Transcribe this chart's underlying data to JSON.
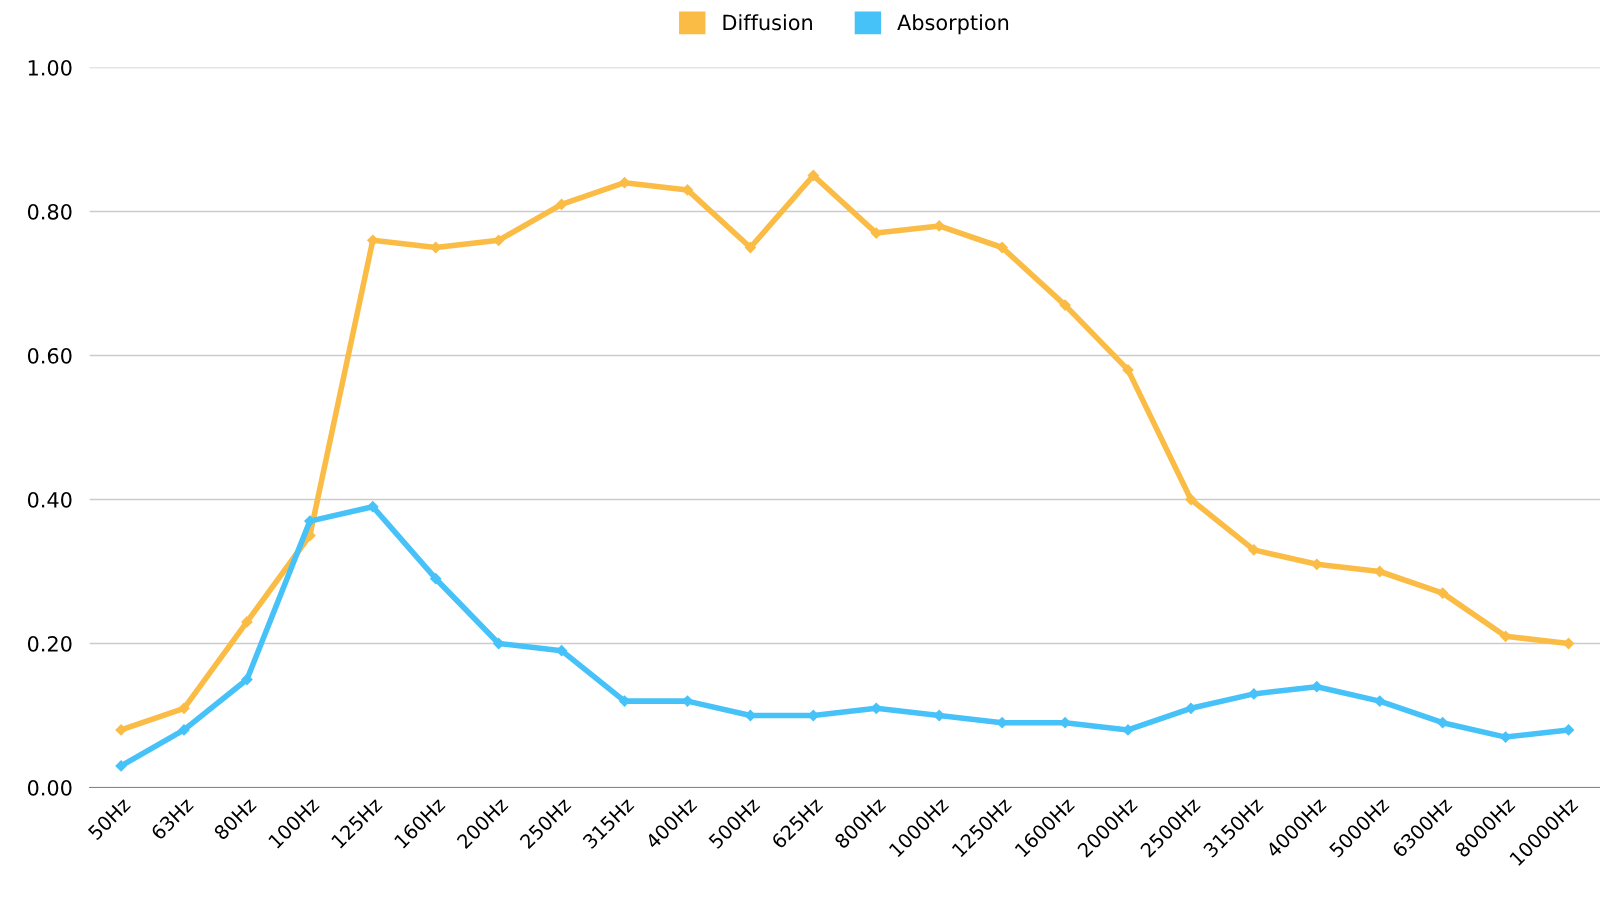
{
  "chart_data": {
    "type": "line",
    "categories": [
      "50Hz",
      "63Hz",
      "80Hz",
      "100Hz",
      "125Hz",
      "160Hz",
      "200Hz",
      "250Hz",
      "315Hz",
      "400Hz",
      "500Hz",
      "625Hz",
      "800Hz",
      "1000Hz",
      "1250Hz",
      "1600Hz",
      "2000Hz",
      "2500Hz",
      "3150Hz",
      "4000Hz",
      "5000Hz",
      "6300Hz",
      "8000Hz",
      "10000Hz"
    ],
    "series": [
      {
        "name": "Diffusion",
        "color": "#fbbc45",
        "values": [
          0.08,
          0.11,
          0.23,
          0.35,
          0.76,
          0.75,
          0.76,
          0.81,
          0.84,
          0.83,
          0.75,
          0.85,
          0.77,
          0.78,
          0.75,
          0.67,
          0.58,
          0.4,
          0.33,
          0.31,
          0.3,
          0.27,
          0.21,
          0.2
        ]
      },
      {
        "name": "Absorption",
        "color": "#47c2f9",
        "values": [
          0.03,
          0.08,
          0.15,
          0.37,
          0.39,
          0.29,
          0.2,
          0.19,
          0.12,
          0.12,
          0.1,
          0.1,
          0.11,
          0.1,
          0.09,
          0.09,
          0.08,
          0.11,
          0.13,
          0.14,
          0.12,
          0.09,
          0.07,
          0.08
        ]
      }
    ],
    "ylim": [
      0,
      1
    ],
    "yticks": [
      {
        "value": 0,
        "label": "0.00"
      },
      {
        "value": 0.2,
        "label": "0.20"
      },
      {
        "value": 0.4,
        "label": "0.40"
      },
      {
        "value": 0.6,
        "label": "0.60"
      },
      {
        "value": 0.8,
        "label": "0.80"
      },
      {
        "value": 1,
        "label": "1.00"
      }
    ],
    "grid": "y",
    "legend": "top",
    "marker": "diamond",
    "line_style": "solid"
  }
}
